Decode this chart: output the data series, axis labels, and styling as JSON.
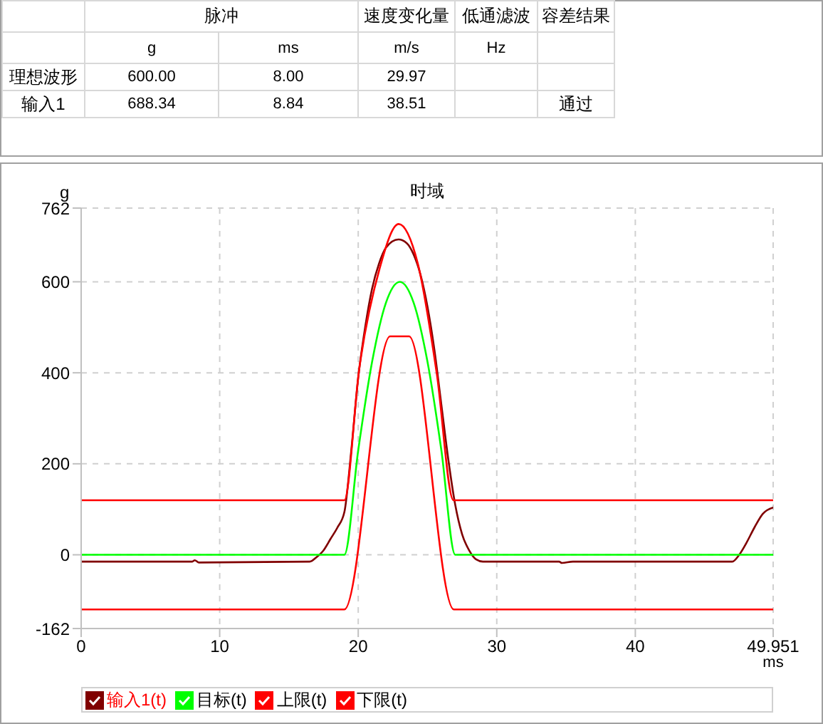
{
  "chart_data": {
    "type": "line",
    "title": "时域",
    "xlabel": "ms",
    "ylabel": "g",
    "xlim": [
      0,
      49.951
    ],
    "xticks": [
      0,
      10,
      20,
      30,
      40,
      49.951
    ],
    "ylim": [
      -162,
      762
    ],
    "yticks": [
      -162,
      0,
      200,
      400,
      600,
      762
    ],
    "grid": true,
    "legend": "bottom",
    "marker": "none",
    "line_style": "solid",
    "annotations": [
      "脉冲",
      "速度变化量",
      "低通滤波",
      "容差结果",
      "g",
      "ms",
      "m/s",
      "Hz",
      "理想波形",
      "600.00",
      "8.00",
      "29.97",
      "输入1",
      "688.34",
      "8.84",
      "38.51",
      "通过"
    ],
    "series": [
      {
        "name": "输入1(t)",
        "color": "#800000",
        "x": [
          0,
          8,
          8.2,
          8.5,
          16.5,
          17,
          17.5,
          18,
          18.5,
          19,
          19.5,
          20,
          20.5,
          21,
          21.5,
          22,
          22.9,
          23.5,
          24,
          24.5,
          25,
          25.5,
          26,
          26.5,
          27,
          27.5,
          28,
          28.5,
          29,
          34.5,
          34.7,
          35.5,
          47,
          47.5,
          48,
          48.6,
          49.2,
          49.951
        ],
        "values": [
          -15,
          -15,
          -12,
          -17,
          -15,
          -5,
          10,
          35,
          60,
          94,
          230,
          390,
          500,
          585,
          640,
          675,
          693,
          685,
          660,
          615,
          545,
          450,
          330,
          210,
          110,
          45,
          10,
          -10,
          -15,
          -15,
          -18,
          -15,
          -15,
          0,
          25,
          60,
          90,
          104
        ]
      },
      {
        "name": "目标(t)",
        "color": "#00ff00",
        "x": [
          0,
          19,
          20,
          21,
          22,
          23,
          24,
          25,
          26,
          27,
          49.951
        ],
        "values": [
          0,
          0,
          230,
          424,
          554,
          600,
          554,
          424,
          230,
          0,
          0
        ]
      },
      {
        "name": "上限(t)",
        "color": "#ff0000",
        "x": [
          0,
          19,
          20.07,
          21.55,
          22.92,
          24.3,
          25.67,
          26.87,
          49.951
        ],
        "values": [
          120,
          120,
          408,
          630,
          727,
          640,
          398,
          120,
          120
        ]
      },
      {
        "name": "下限(t)",
        "color": "#ff0000",
        "x": [
          0,
          19,
          22.3,
          23.67,
          26.9,
          49.951
        ],
        "values": [
          -120,
          -120,
          480,
          480,
          -120,
          -120
        ]
      }
    ]
  }
}
